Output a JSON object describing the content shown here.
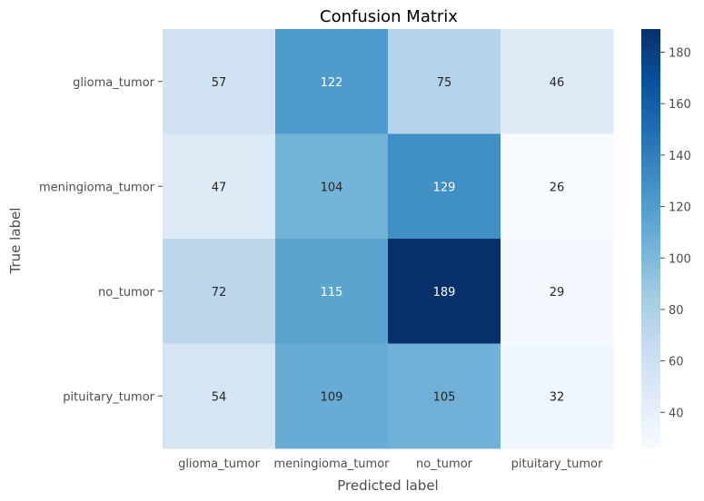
{
  "chart_data": {
    "type": "heatmap",
    "title": "Confusion Matrix",
    "xlabel": "Predicted label",
    "ylabel": "True label",
    "x_categories": [
      "glioma_tumor",
      "meningioma_tumor",
      "no_tumor",
      "pituitary_tumor"
    ],
    "y_categories": [
      "glioma_tumor",
      "meningioma_tumor",
      "no_tumor",
      "pituitary_tumor"
    ],
    "values": [
      [
        57,
        122,
        75,
        46
      ],
      [
        47,
        104,
        129,
        26
      ],
      [
        72,
        115,
        189,
        29
      ],
      [
        54,
        109,
        105,
        32
      ]
    ],
    "colormap": "Blues",
    "colorbar": {
      "min": 26,
      "max": 189,
      "ticks": [
        40,
        60,
        80,
        100,
        120,
        140,
        160,
        180
      ]
    },
    "grid": false
  }
}
